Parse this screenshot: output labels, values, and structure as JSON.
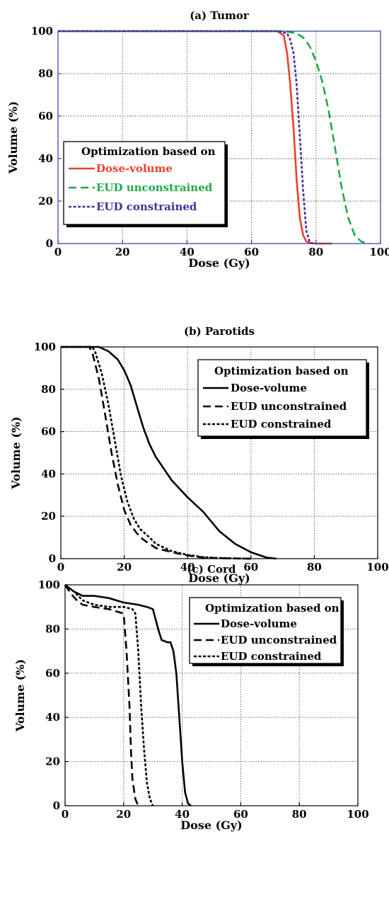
{
  "chart_data": [
    {
      "type": "line",
      "title": "(a) Tumor",
      "xlabel": "Dose (Gy)",
      "ylabel": "Volume (%)",
      "xlim": [
        0,
        100
      ],
      "ylim": [
        0,
        100
      ],
      "xticks": [
        "0",
        "20",
        "40",
        "60",
        "80",
        "100"
      ],
      "yticks": [
        "0",
        "20",
        "40",
        "60",
        "80",
        "100"
      ],
      "grid": true,
      "legend": {
        "title": "Optimization based on",
        "placement": "lower-left",
        "framed": true
      },
      "series": [
        {
          "name": "Dose-volume",
          "color": "#e8412d",
          "dash": "solid",
          "x": [
            0,
            68,
            70,
            71,
            72,
            73,
            74,
            75,
            76,
            77,
            78,
            80,
            85
          ],
          "y": [
            100,
            100,
            98,
            90,
            75,
            55,
            30,
            12,
            4,
            1,
            0.3,
            0,
            0
          ]
        },
        {
          "name": "EUD unconstrained",
          "color": "#22a84a",
          "dash": "dashed",
          "x": [
            0,
            70,
            74,
            76,
            78,
            80,
            82,
            84,
            86,
            88,
            90,
            92,
            94,
            96
          ],
          "y": [
            100,
            100,
            99,
            97,
            93,
            86,
            76,
            62,
            44,
            26,
            12,
            4,
            1,
            0
          ]
        },
        {
          "name": "EUD constrained",
          "color": "#4a2c9a",
          "dash": "dotted",
          "x": [
            0,
            68,
            71,
            72,
            73,
            74,
            75,
            76,
            77,
            78,
            79
          ],
          "y": [
            100,
            100,
            99,
            96,
            90,
            75,
            50,
            25,
            6,
            1,
            0
          ]
        }
      ]
    },
    {
      "type": "line",
      "title": "(b) Parotids",
      "xlabel": "Dose (Gy)",
      "ylabel": "Volume (%)",
      "xlim": [
        0,
        100
      ],
      "ylim": [
        0,
        100
      ],
      "xticks": [
        "0",
        "20",
        "40",
        "60",
        "80",
        "100"
      ],
      "yticks": [
        "0",
        "20",
        "40",
        "60",
        "80",
        "100"
      ],
      "grid": true,
      "legend": {
        "title": "Optimization based on",
        "placement": "upper-right",
        "framed": true
      },
      "series": [
        {
          "name": "Dose-volume",
          "color": "#000000",
          "dash": "solid",
          "x": [
            0,
            12,
            15,
            18,
            20,
            22,
            24,
            26,
            28,
            30,
            35,
            40,
            45,
            50,
            55,
            60,
            65,
            68
          ],
          "y": [
            100,
            100,
            98,
            94,
            89,
            82,
            72,
            62,
            54,
            48,
            37,
            29,
            22,
            13,
            7,
            3,
            0.5,
            0
          ]
        },
        {
          "name": "EUD unconstrained",
          "color": "#000000",
          "dash": "dashed",
          "x": [
            0,
            9,
            10,
            12,
            14,
            16,
            18,
            20,
            22,
            24,
            26,
            30,
            35,
            40,
            45,
            50,
            55,
            60
          ],
          "y": [
            100,
            100,
            97,
            85,
            68,
            50,
            35,
            23,
            16,
            12,
            9,
            5,
            3,
            1.5,
            0.5,
            0.2,
            0.1,
            0
          ]
        },
        {
          "name": "EUD constrained",
          "color": "#000000",
          "dash": "dotted",
          "x": [
            0,
            10,
            11,
            13,
            15,
            17,
            19,
            21,
            23,
            25,
            28,
            30,
            35,
            40,
            45,
            50,
            55,
            60
          ],
          "y": [
            100,
            100,
            97,
            87,
            73,
            56,
            39,
            27,
            19,
            14,
            10,
            7,
            3.5,
            1.8,
            0.7,
            0.3,
            0.1,
            0
          ]
        }
      ]
    },
    {
      "type": "line",
      "title": "(c) Cord",
      "xlabel": "Dose (Gy)",
      "ylabel": "Volume (%)",
      "xlim": [
        0,
        100
      ],
      "ylim": [
        0,
        100
      ],
      "xticks": [
        "0",
        "20",
        "40",
        "60",
        "80",
        "100"
      ],
      "yticks": [
        "0",
        "20",
        "40",
        "60",
        "80",
        "100"
      ],
      "grid": true,
      "legend": {
        "title": "Optimization based on",
        "placement": "upper-right",
        "framed": true
      },
      "series": [
        {
          "name": "Dose-volume",
          "color": "#000000",
          "dash": "solid",
          "x": [
            0,
            3,
            6,
            10,
            15,
            20,
            25,
            28,
            30,
            31,
            32,
            33,
            35,
            36,
            37,
            38,
            39,
            40,
            41,
            42,
            43
          ],
          "y": [
            100,
            97,
            95,
            95,
            94,
            92,
            91,
            90,
            89,
            84,
            79,
            75,
            74,
            74,
            70,
            60,
            40,
            20,
            6,
            1,
            0
          ]
        },
        {
          "name": "EUD unconstrained",
          "color": "#000000",
          "dash": "dashed",
          "x": [
            0,
            2,
            4,
            6,
            10,
            15,
            20,
            21,
            22,
            22.5,
            23,
            24,
            25
          ],
          "y": [
            100,
            96,
            93,
            91,
            90,
            89,
            87,
            70,
            45,
            25,
            12,
            3,
            0
          ]
        },
        {
          "name": "EUD constrained",
          "color": "#000000",
          "dash": "dotted",
          "x": [
            0,
            3,
            6,
            10,
            15,
            20,
            23,
            24,
            25,
            26,
            27,
            28,
            29,
            30
          ],
          "y": [
            100,
            97,
            93,
            91,
            90,
            90,
            89,
            87,
            70,
            45,
            25,
            10,
            3,
            0
          ]
        }
      ]
    }
  ]
}
